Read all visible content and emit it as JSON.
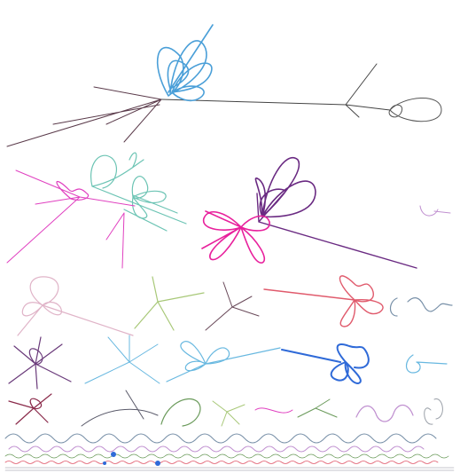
{
  "colors": {
    "background": "#ffffff",
    "sky_blue": "#4a9fd8",
    "dark_gray": "#444444",
    "teal": "#6cc4b4",
    "magenta": "#e040c0",
    "hot_pink": "#e8209c",
    "purple": "#6a2a82",
    "light_pink": "#e0b4c8",
    "light_green": "#a8c878",
    "coral": "#e05a6c",
    "blue_gray": "#7890a8",
    "plum": "#6a3a7a",
    "light_blue": "#68b8e0",
    "royal_blue": "#2f6ad8",
    "maroon": "#8a2a4a",
    "olive_green": "#6a9a5a",
    "lavender": "#c090d0"
  }
}
